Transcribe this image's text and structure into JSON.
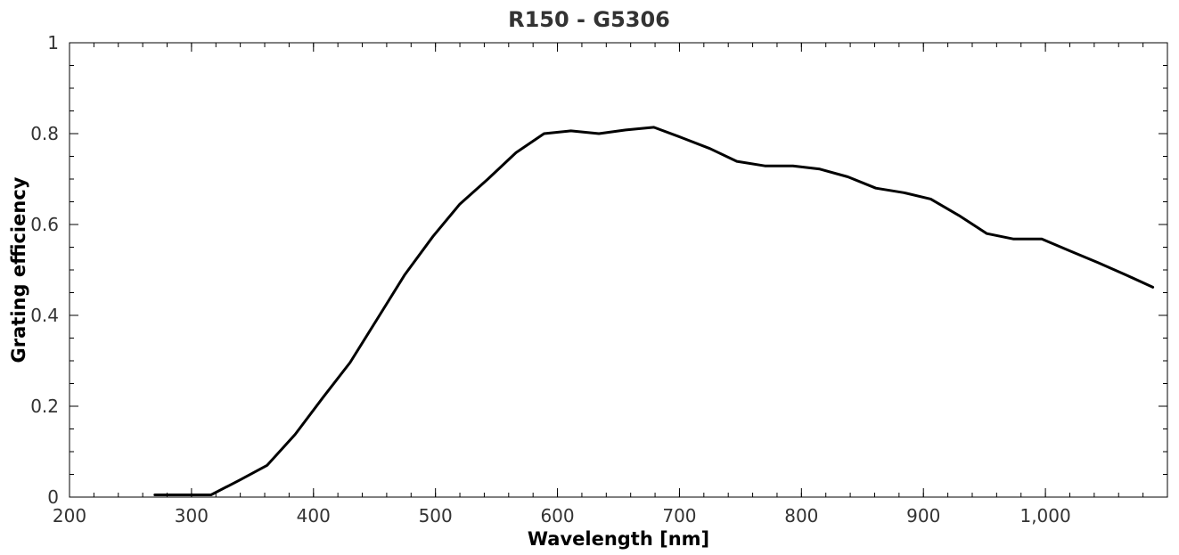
{
  "chart_data": {
    "type": "line",
    "title": "R150 - G5306",
    "xlabel": "Wavelength [nm]",
    "ylabel": "Grating efficiency",
    "xlim": [
      200,
      1100
    ],
    "ylim": [
      0,
      1
    ],
    "xticks": [
      200,
      300,
      400,
      500,
      600,
      700,
      800,
      900,
      1000
    ],
    "xtick_labels": [
      "200",
      "300",
      "400",
      "500",
      "600",
      "700",
      "800",
      "900",
      "1,000"
    ],
    "yticks": [
      0,
      0.2,
      0.4,
      0.6,
      0.8,
      1
    ],
    "ytick_labels": [
      "0",
      "0.2",
      "0.4",
      "0.6",
      "0.8",
      "1"
    ],
    "grid": false,
    "series": [
      {
        "x": [
          270,
          316,
          340,
          362,
          385,
          408,
          430,
          453,
          475,
          498,
          520,
          543,
          566,
          589,
          611,
          634,
          656,
          679,
          702,
          725,
          747,
          770,
          793,
          815,
          838,
          861,
          884,
          906,
          929,
          952,
          974,
          997,
          1020,
          1043,
          1066,
          1088
        ],
        "y": [
          0.005,
          0.005,
          0.038,
          0.07,
          0.138,
          0.22,
          0.296,
          0.395,
          0.49,
          0.574,
          0.645,
          0.7,
          0.758,
          0.8,
          0.806,
          0.8,
          0.808,
          0.814,
          0.791,
          0.767,
          0.739,
          0.729,
          0.729,
          0.722,
          0.705,
          0.68,
          0.67,
          0.656,
          0.62,
          0.58,
          0.568,
          0.568,
          0.542,
          0.516,
          0.489,
          0.462
        ],
        "color": "#000000"
      }
    ]
  }
}
